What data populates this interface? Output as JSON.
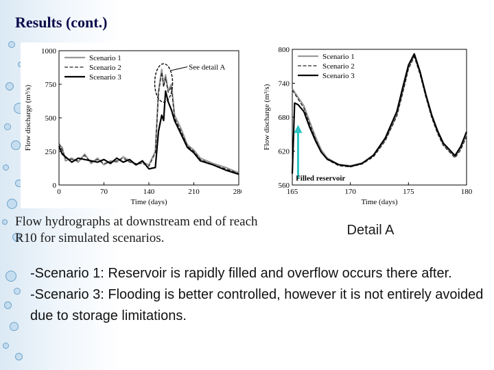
{
  "slide": {
    "title": "Results (cont.)",
    "caption": "Flow hydrographs at downstream end of reach R10 for simulated scenarios.",
    "detail_label": "Detail A",
    "bullets": [
      "-Scenario 1: Reservoir is rapidly filled and overflow occurs there after.",
      "-Scenario 3: Flooding is better controlled, however it is not entirely avoided due to storage limitations."
    ]
  },
  "colors": {
    "scenario1": "#999999",
    "scenario2": "#222222",
    "scenario3": "#000000",
    "arrow": "#2cc4c4",
    "title": "#0a0a4a"
  },
  "chart_data": [
    {
      "type": "line",
      "xlabel": "Time (days)",
      "ylabel": "Flow discharge (m³/s)",
      "xlim": [
        0,
        280
      ],
      "ylim": [
        0,
        1000
      ],
      "xticks": [
        0,
        70,
        140,
        210,
        280
      ],
      "yticks": [
        0,
        250,
        500,
        750,
        1000
      ],
      "legend": "top-left",
      "annotation": "See detail A",
      "series": [
        {
          "name": "Scenario 1",
          "x": [
            0,
            5,
            10,
            20,
            30,
            40,
            50,
            60,
            70,
            80,
            90,
            100,
            110,
            120,
            130,
            140,
            150,
            155,
            160,
            163,
            166,
            170,
            175,
            180,
            190,
            200,
            210,
            220,
            240,
            260,
            280
          ],
          "y": [
            300,
            280,
            180,
            200,
            170,
            230,
            160,
            200,
            150,
            180,
            170,
            210,
            180,
            150,
            170,
            150,
            250,
            700,
            860,
            740,
            820,
            700,
            750,
            520,
            420,
            300,
            260,
            200,
            160,
            130,
            90
          ]
        },
        {
          "name": "Scenario 2",
          "x": [
            0,
            5,
            10,
            20,
            30,
            40,
            50,
            60,
            70,
            80,
            90,
            100,
            110,
            120,
            130,
            140,
            150,
            155,
            160,
            163,
            166,
            170,
            175,
            180,
            190,
            200,
            210,
            220,
            240,
            260,
            280
          ],
          "y": [
            310,
            260,
            200,
            190,
            180,
            220,
            170,
            190,
            160,
            170,
            180,
            200,
            170,
            160,
            160,
            140,
            240,
            680,
            840,
            730,
            800,
            690,
            730,
            500,
            400,
            290,
            250,
            190,
            150,
            120,
            85
          ]
        },
        {
          "name": "Scenario 3",
          "x": [
            0,
            5,
            10,
            20,
            30,
            40,
            50,
            60,
            70,
            80,
            90,
            100,
            110,
            120,
            130,
            140,
            150,
            155,
            160,
            163,
            166,
            170,
            175,
            180,
            190,
            200,
            210,
            220,
            240,
            260,
            280
          ],
          "y": [
            290,
            230,
            210,
            170,
            200,
            190,
            180,
            170,
            190,
            160,
            200,
            170,
            190,
            150,
            180,
            120,
            130,
            400,
            520,
            480,
            700,
            620,
            560,
            480,
            380,
            280,
            240,
            180,
            150,
            110,
            80
          ]
        }
      ]
    },
    {
      "type": "line",
      "xlabel": "Time (days)",
      "ylabel": "Flow discharge (m³/s)",
      "xlim": [
        165,
        180
      ],
      "ylim": [
        560,
        800
      ],
      "xticks": [
        165,
        170,
        175,
        180
      ],
      "yticks": [
        560,
        620,
        680,
        740,
        800
      ],
      "legend": "top-left",
      "annotation": "Filled reservoir",
      "series": [
        {
          "name": "Scenario 1",
          "x": [
            165,
            165.5,
            166,
            166.5,
            167,
            167.5,
            168,
            169,
            170,
            171,
            172,
            173,
            174,
            174.5,
            175,
            175.5,
            176,
            176.5,
            177,
            177.5,
            178,
            179,
            179.5,
            180
          ],
          "y": [
            730,
            715,
            700,
            672,
            645,
            622,
            608,
            596,
            594,
            599,
            612,
            640,
            685,
            725,
            768,
            790,
            758,
            718,
            682,
            654,
            632,
            610,
            625,
            650
          ]
        },
        {
          "name": "Scenario 2",
          "x": [
            165,
            165.5,
            166,
            166.5,
            167,
            167.5,
            168,
            169,
            170,
            171,
            172,
            173,
            174,
            174.5,
            175,
            175.5,
            176,
            176.5,
            177,
            177.5,
            178,
            179,
            179.5,
            180
          ],
          "y": [
            728,
            712,
            696,
            668,
            641,
            619,
            605,
            594,
            592,
            597,
            610,
            638,
            682,
            722,
            765,
            787,
            755,
            715,
            679,
            651,
            630,
            608,
            622,
            646
          ]
        },
        {
          "name": "Scenario 3",
          "x": [
            165,
            165.2,
            165.5,
            166,
            166.5,
            167,
            167.5,
            168,
            169,
            170,
            171,
            172,
            173,
            174,
            174.5,
            175,
            175.5,
            176,
            176.5,
            177,
            177.5,
            178,
            179,
            179.5,
            180
          ],
          "y": [
            580,
            705,
            702,
            690,
            662,
            638,
            618,
            606,
            596,
            593,
            598,
            613,
            643,
            690,
            732,
            772,
            792,
            760,
            720,
            684,
            656,
            634,
            612,
            628,
            654
          ]
        }
      ]
    }
  ]
}
